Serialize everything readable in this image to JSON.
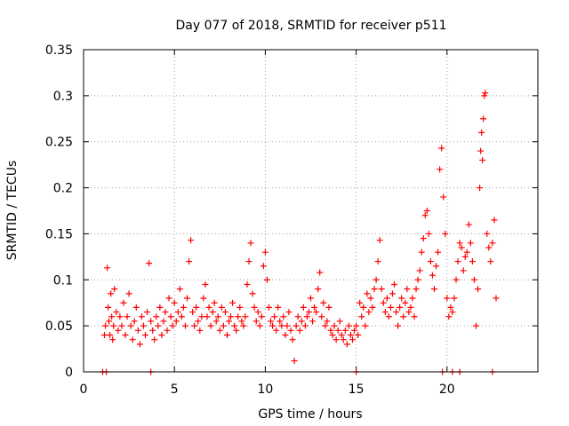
{
  "chart_data": {
    "type": "scatter",
    "title": "Day 077 of 2018, SRMTID for receiver p511",
    "xlabel": "GPS time / hours",
    "ylabel": "SRMTID / TECUs",
    "xlim": [
      0,
      25
    ],
    "ylim": [
      0,
      0.35
    ],
    "x_ticks": [
      0,
      5,
      10,
      15,
      20
    ],
    "x_tick_labels": [
      "0",
      "5",
      "10",
      "15",
      "20"
    ],
    "y_ticks": [
      0,
      0.05,
      0.1,
      0.15,
      0.2,
      0.25,
      0.3,
      0.35
    ],
    "y_tick_labels": [
      "0",
      "0.05",
      "0.1",
      "0.15",
      "0.2",
      "0.25",
      "0.3",
      "0.35"
    ],
    "grid": true,
    "marker": "+",
    "series": [
      {
        "name": "SRMTID",
        "color": "#ff0000",
        "x": [
          1.15,
          1.2,
          1.3,
          1.35,
          1.4,
          1.45,
          1.5,
          1.55,
          1.6,
          1.65,
          1.7,
          1.8,
          1.9,
          2.0,
          2.1,
          2.2,
          2.3,
          2.4,
          2.5,
          2.6,
          2.7,
          2.8,
          2.9,
          3.0,
          3.1,
          3.2,
          3.3,
          3.4,
          3.5,
          3.6,
          3.7,
          3.8,
          3.9,
          4.0,
          4.1,
          4.2,
          4.3,
          4.4,
          4.5,
          4.6,
          4.7,
          4.8,
          4.9,
          5.0,
          5.1,
          5.2,
          5.3,
          5.4,
          5.5,
          5.6,
          5.7,
          5.8,
          5.9,
          6.0,
          6.1,
          6.2,
          6.3,
          6.4,
          6.5,
          6.6,
          6.7,
          6.8,
          6.9,
          7.0,
          7.1,
          7.2,
          7.3,
          7.4,
          7.5,
          7.6,
          7.7,
          7.8,
          7.9,
          8.0,
          8.1,
          8.2,
          8.3,
          8.4,
          8.5,
          8.6,
          8.7,
          8.8,
          8.9,
          9.0,
          9.1,
          9.2,
          9.3,
          9.4,
          9.5,
          9.6,
          9.7,
          9.8,
          9.9,
          10.0,
          10.1,
          10.2,
          10.3,
          10.4,
          10.5,
          10.6,
          10.7,
          10.8,
          10.9,
          11.0,
          11.1,
          11.2,
          11.3,
          11.4,
          11.5,
          11.6,
          11.7,
          11.8,
          11.9,
          12.0,
          12.1,
          12.2,
          12.3,
          12.4,
          12.5,
          12.6,
          12.7,
          12.8,
          12.9,
          13.0,
          13.1,
          13.2,
          13.3,
          13.4,
          13.5,
          13.6,
          13.7,
          13.8,
          13.9,
          14.0,
          14.1,
          14.2,
          14.3,
          14.4,
          14.5,
          14.6,
          14.7,
          14.8,
          14.9,
          15.0,
          15.1,
          15.2,
          15.3,
          15.4,
          15.5,
          15.6,
          15.7,
          15.8,
          15.9,
          16.0,
          16.1,
          16.2,
          16.3,
          16.4,
          16.5,
          16.6,
          16.7,
          16.8,
          16.9,
          17.0,
          17.1,
          17.2,
          17.3,
          17.4,
          17.5,
          17.6,
          17.7,
          17.8,
          17.9,
          18.0,
          18.1,
          18.2,
          18.3,
          18.4,
          18.5,
          18.6,
          18.7,
          18.8,
          18.9,
          19.0,
          19.1,
          19.2,
          19.3,
          19.4,
          19.5,
          19.6,
          19.7,
          19.8,
          19.9,
          20.0,
          20.1,
          20.2,
          20.3,
          20.4,
          20.5,
          20.6,
          20.7,
          20.8,
          20.9,
          21.0,
          21.1,
          21.2,
          21.3,
          21.4,
          21.5,
          21.6,
          21.7,
          21.8,
          21.85,
          21.9,
          21.95,
          22.0,
          22.05,
          22.1,
          22.2,
          22.3,
          22.4,
          22.5,
          22.6,
          22.7,
          1.05,
          1.25,
          3.7,
          15.0,
          19.75,
          20.3,
          20.7,
          22.5
        ],
        "y": [
          0.04,
          0.05,
          0.113,
          0.07,
          0.055,
          0.04,
          0.085,
          0.06,
          0.035,
          0.05,
          0.09,
          0.065,
          0.045,
          0.06,
          0.05,
          0.075,
          0.04,
          0.06,
          0.085,
          0.05,
          0.035,
          0.055,
          0.07,
          0.045,
          0.03,
          0.06,
          0.05,
          0.04,
          0.065,
          0.118,
          0.055,
          0.045,
          0.035,
          0.06,
          0.05,
          0.07,
          0.04,
          0.055,
          0.065,
          0.045,
          0.08,
          0.06,
          0.05,
          0.075,
          0.055,
          0.065,
          0.09,
          0.06,
          0.07,
          0.05,
          0.08,
          0.12,
          0.143,
          0.065,
          0.05,
          0.07,
          0.055,
          0.045,
          0.06,
          0.08,
          0.095,
          0.06,
          0.07,
          0.05,
          0.065,
          0.075,
          0.055,
          0.06,
          0.045,
          0.07,
          0.05,
          0.065,
          0.04,
          0.055,
          0.06,
          0.075,
          0.05,
          0.045,
          0.06,
          0.07,
          0.055,
          0.05,
          0.06,
          0.095,
          0.12,
          0.14,
          0.085,
          0.07,
          0.055,
          0.065,
          0.05,
          0.06,
          0.115,
          0.13,
          0.1,
          0.07,
          0.055,
          0.05,
          0.06,
          0.045,
          0.07,
          0.055,
          0.05,
          0.06,
          0.04,
          0.05,
          0.065,
          0.045,
          0.035,
          0.012,
          0.05,
          0.06,
          0.045,
          0.055,
          0.07,
          0.05,
          0.06,
          0.065,
          0.08,
          0.055,
          0.07,
          0.065,
          0.09,
          0.108,
          0.06,
          0.075,
          0.05,
          0.055,
          0.07,
          0.045,
          0.04,
          0.05,
          0.035,
          0.045,
          0.055,
          0.04,
          0.035,
          0.045,
          0.03,
          0.05,
          0.04,
          0.035,
          0.045,
          0.05,
          0.04,
          0.075,
          0.06,
          0.07,
          0.05,
          0.085,
          0.065,
          0.08,
          0.07,
          0.09,
          0.1,
          0.12,
          0.143,
          0.09,
          0.075,
          0.065,
          0.08,
          0.06,
          0.07,
          0.085,
          0.095,
          0.065,
          0.05,
          0.07,
          0.08,
          0.06,
          0.075,
          0.09,
          0.065,
          0.07,
          0.08,
          0.06,
          0.09,
          0.1,
          0.11,
          0.13,
          0.145,
          0.17,
          0.175,
          0.15,
          0.12,
          0.105,
          0.09,
          0.115,
          0.13,
          0.22,
          0.243,
          0.19,
          0.15,
          0.08,
          0.06,
          0.07,
          0.065,
          0.08,
          0.1,
          0.12,
          0.14,
          0.135,
          0.11,
          0.125,
          0.13,
          0.16,
          0.14,
          0.12,
          0.1,
          0.05,
          0.09,
          0.2,
          0.24,
          0.26,
          0.23,
          0.275,
          0.3,
          0.303,
          0.15,
          0.135,
          0.12,
          0.14,
          0.165,
          0.08,
          0,
          0,
          0,
          0,
          0,
          0,
          0,
          0
        ]
      }
    ]
  }
}
